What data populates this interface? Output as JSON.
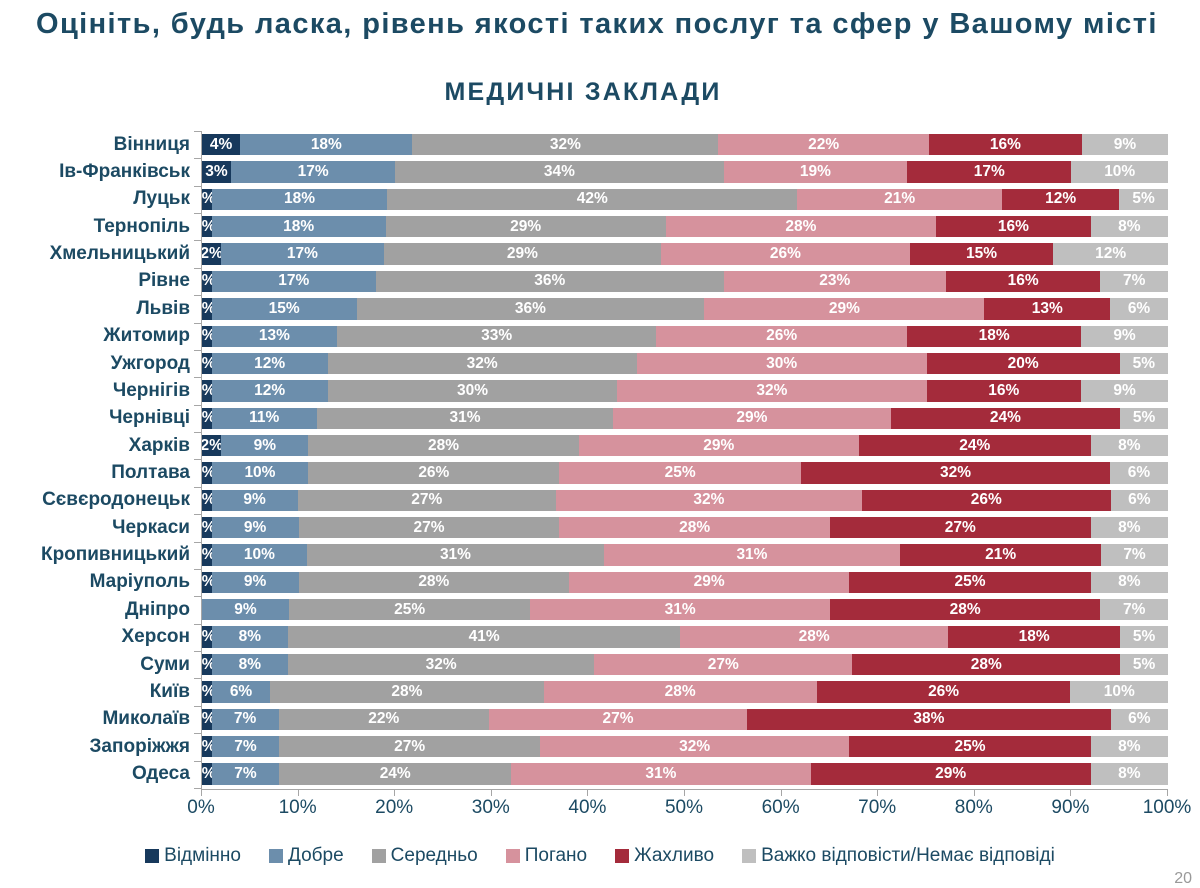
{
  "title": "Оцініть, будь ласка, рівень якості таких послуг та сфер у Вашому місті",
  "subtitle": "МЕДИЧНІ ЗАКЛАДИ",
  "page_number": "20",
  "text_color": "#1C4A63",
  "chart_data": {
    "type": "bar",
    "stacked": true,
    "percent_stacked": true,
    "orientation": "horizontal",
    "title": "МЕДИЧНІ ЗАКЛАДИ",
    "categories": [
      "Вінниця",
      "Ів-Франківськ",
      "Луцьк",
      "Тернопіль",
      "Хмельницький",
      "Рівне",
      "Львів",
      "Житомир",
      "Ужгород",
      "Чернігів",
      "Чернівці",
      "Харків",
      "Полтава",
      "Сєвєродонецьк",
      "Черкаси",
      "Кропивницький",
      "Маріуполь",
      "Дніпро",
      "Херсон",
      "Суми",
      "Київ",
      "Миколаїв",
      "Запоріжжя",
      "Одеса"
    ],
    "series": [
      {
        "name": "Відмінно",
        "color": "#17395C",
        "values": [
          4,
          3,
          1,
          1,
          2,
          1,
          1,
          1,
          1,
          1,
          1,
          2,
          1,
          1,
          1,
          1,
          1,
          0,
          1,
          1,
          1,
          1,
          1,
          1
        ]
      },
      {
        "name": "Добре",
        "color": "#6C8EAC",
        "values": [
          18,
          17,
          18,
          18,
          17,
          17,
          15,
          13,
          12,
          12,
          11,
          9,
          10,
          9,
          9,
          10,
          9,
          9,
          8,
          8,
          6,
          7,
          7,
          7
        ]
      },
      {
        "name": "Середньо",
        "color": "#A1A1A1",
        "values": [
          32,
          34,
          42,
          29,
          29,
          36,
          36,
          33,
          32,
          30,
          31,
          28,
          26,
          27,
          27,
          31,
          28,
          25,
          41,
          32,
          28,
          22,
          27,
          24
        ]
      },
      {
        "name": "Погано",
        "color": "#D6929D",
        "values": [
          22,
          19,
          21,
          28,
          26,
          23,
          29,
          26,
          30,
          32,
          29,
          29,
          25,
          32,
          28,
          31,
          29,
          31,
          28,
          27,
          28,
          27,
          32,
          31
        ]
      },
      {
        "name": "Жахливо",
        "color": "#A42B3B",
        "values": [
          16,
          17,
          12,
          16,
          15,
          16,
          13,
          18,
          20,
          16,
          24,
          24,
          32,
          26,
          27,
          21,
          25,
          28,
          18,
          28,
          26,
          38,
          25,
          29
        ]
      },
      {
        "name": "Важко відповісти/Немає відповіді",
        "color": "#BFBFBF",
        "values": [
          9,
          10,
          5,
          8,
          12,
          7,
          6,
          9,
          5,
          9,
          5,
          8,
          6,
          6,
          8,
          7,
          8,
          7,
          5,
          5,
          10,
          6,
          8,
          8
        ]
      }
    ],
    "x_ticks": [
      "0%",
      "10%",
      "20%",
      "30%",
      "40%",
      "50%",
      "60%",
      "70%",
      "80%",
      "90%",
      "100%"
    ],
    "xlim": [
      0,
      100
    ],
    "legend_position": "bottom"
  }
}
